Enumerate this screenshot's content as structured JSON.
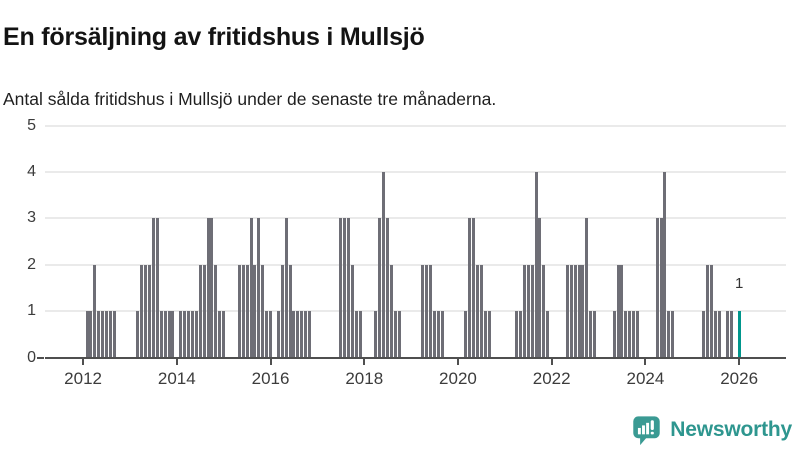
{
  "header": {
    "title": "En försäljning av fritidshus i Mullsjö",
    "subtitle": "Antal sålda fritidshus i Mullsjö under de senaste tre månaderna."
  },
  "chart_data": {
    "type": "bar",
    "title": "En försäljning av fritidshus i Mullsjö",
    "subtitle": "Antal sålda fritidshus i Mullsjö under de senaste tre månaderna.",
    "x_start": "2012-01",
    "x_end": "2026-01",
    "frequency_note": "one bar per month, rolling 3-month count of sold vacation homes",
    "values_by_year": {
      "2012": [
        0,
        1,
        1,
        2,
        1,
        1,
        1,
        1,
        1,
        0,
        0,
        0
      ],
      "2013": [
        0,
        0,
        1,
        2,
        2,
        2,
        3,
        3,
        1,
        1,
        1,
        1
      ],
      "2014": [
        0,
        1,
        1,
        1,
        1,
        1,
        2,
        2,
        3,
        3,
        2,
        1
      ],
      "2015": [
        1,
        0,
        0,
        0,
        2,
        2,
        2,
        3,
        2,
        3,
        2,
        1
      ],
      "2016": [
        1,
        0,
        1,
        2,
        3,
        2,
        1,
        1,
        1,
        1,
        1,
        0
      ],
      "2017": [
        0,
        0,
        0,
        0,
        0,
        0,
        3,
        3,
        3,
        2,
        1,
        1
      ],
      "2018": [
        0,
        0,
        0,
        1,
        3,
        4,
        3,
        2,
        1,
        1,
        0,
        0
      ],
      "2019": [
        0,
        0,
        0,
        2,
        2,
        2,
        1,
        1,
        1,
        0,
        0,
        0
      ],
      "2020": [
        0,
        0,
        1,
        3,
        3,
        2,
        2,
        1,
        1,
        0,
        0,
        0
      ],
      "2021": [
        0,
        0,
        0,
        1,
        1,
        2,
        2,
        2,
        4,
        3,
        2,
        1
      ],
      "2022": [
        0,
        0,
        0,
        0,
        2,
        2,
        2,
        2,
        2,
        3,
        1,
        1
      ],
      "2023": [
        0,
        0,
        0,
        0,
        1,
        2,
        2,
        1,
        1,
        1,
        1,
        0
      ],
      "2024": [
        0,
        0,
        0,
        3,
        3,
        4,
        1,
        1,
        0,
        0,
        0,
        0
      ],
      "2025": [
        0,
        0,
        0,
        1,
        2,
        2,
        1,
        1,
        0,
        1,
        1,
        0
      ],
      "2026": [
        1
      ]
    },
    "yticks": [
      0,
      1,
      2,
      3,
      4,
      5
    ],
    "ylim": [
      0,
      5
    ],
    "xticks": [
      2012,
      2014,
      2016,
      2018,
      2020,
      2022,
      2024,
      2026
    ],
    "grid": true,
    "legend": "none",
    "bar_color": "#6e6e76",
    "highlight": {
      "month": "2026-01",
      "value": 1,
      "label": "1",
      "color": "#00968c"
    }
  },
  "footer": {
    "brand": "Newsworthy",
    "brand_color": "#2e968f",
    "logo_icon": "newsworthy-speech-bubble-bar-chart-icon"
  }
}
